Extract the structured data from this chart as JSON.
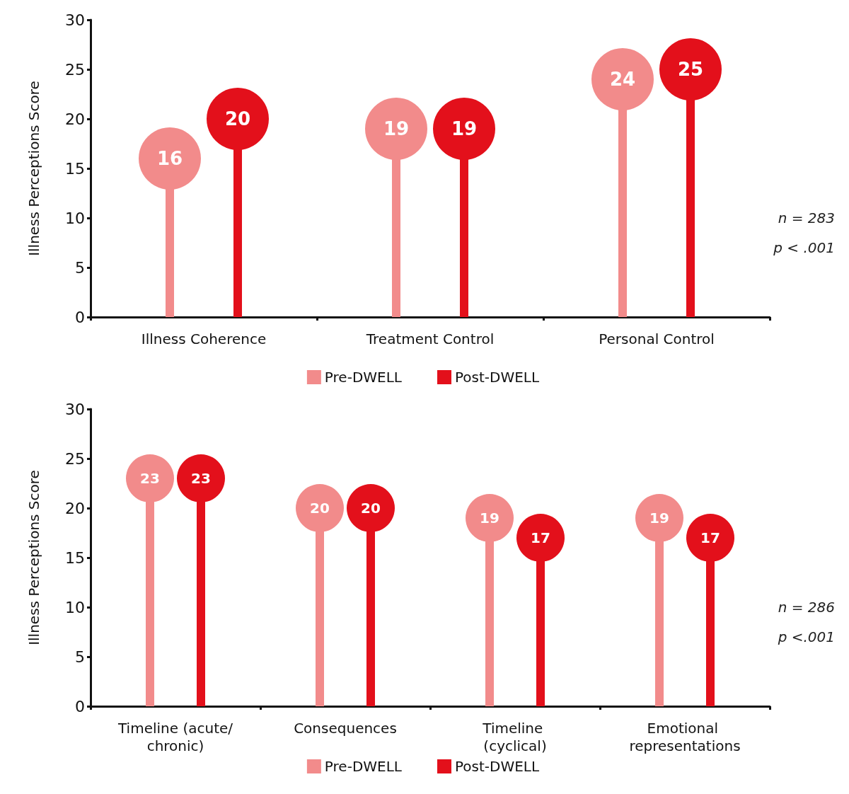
{
  "chart_data": [
    {
      "type": "lollipop",
      "ylabel": "Illness Perceptions Score",
      "categories": [
        "Illness Coherence",
        "Treatment Control",
        "Personal Control"
      ],
      "series": [
        {
          "name": "Pre-DWELL",
          "color": "#f28b8b",
          "values": [
            16,
            19,
            24
          ]
        },
        {
          "name": "Post-DWELL",
          "color": "#e3101b",
          "values": [
            20,
            19,
            25
          ]
        }
      ],
      "ylim": [
        0,
        30
      ],
      "yticks": [
        0,
        5,
        10,
        15,
        20,
        25,
        30
      ],
      "grid": false,
      "legend": "bottom",
      "data_labels": true,
      "annotations": [
        "n = 283",
        "p < .001"
      ]
    },
    {
      "type": "lollipop",
      "ylabel": "Illness Perceptions Score",
      "categories": [
        "Timeline (acute/chronic)",
        "Consequences",
        "Timeline (cyclical)",
        "Emotional representations"
      ],
      "series": [
        {
          "name": "Pre-DWELL",
          "color": "#f28b8b",
          "values": [
            23,
            20,
            19,
            19
          ]
        },
        {
          "name": "Post-DWELL",
          "color": "#e3101b",
          "values": [
            23,
            20,
            17,
            17
          ]
        }
      ],
      "ylim": [
        0,
        30
      ],
      "yticks": [
        0,
        5,
        10,
        15,
        20,
        25,
        30
      ],
      "grid": false,
      "legend": "bottom",
      "data_labels": true,
      "annotations": [
        "n = 286",
        "p <.001"
      ]
    }
  ]
}
